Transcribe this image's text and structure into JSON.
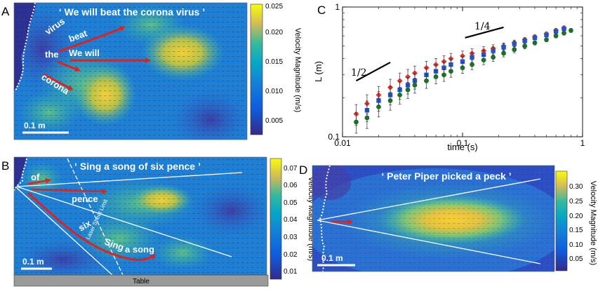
{
  "panels": {
    "A": {
      "label": "A",
      "quote": "‘ We will beat the corona virus ’",
      "words": [
        "virus",
        "beat",
        "the",
        "We will",
        "corona"
      ],
      "scale_bar": "0.1 m",
      "colorbar": {
        "title": "Velocity Magnitude (m/s)",
        "ticks": [
          "0.025",
          "0.020",
          "0.015",
          "0.010",
          "0.005"
        ]
      }
    },
    "B": {
      "label": "B",
      "quote": "‘ Sing a song of six pence ’",
      "words": [
        "of",
        "pence",
        "six",
        "Sing",
        "a song"
      ],
      "limit_label": "Laser Sheet Limit",
      "table_label": "Table",
      "scale_bar": "0.1 m",
      "colorbar": {
        "title": "Velocity Magnitude (m/s)",
        "ticks": [
          "0.07",
          "0.06",
          "0.05",
          "0.04",
          "0.03",
          "0.02",
          "0.01"
        ]
      }
    },
    "D": {
      "label": "D",
      "quote": "‘ Peter Piper picked a peck ’",
      "scale_bar": "0.1 m",
      "colorbar": {
        "title": "Velocity Magnitude (m/s)",
        "ticks": [
          "0.30",
          "0.25",
          "0.20",
          "0.15",
          "0.10",
          "0.05"
        ]
      }
    }
  },
  "chart_data": {
    "type": "scatter",
    "panel_label": "C",
    "xlabel": "time (s)",
    "ylabel": "L (m)",
    "xscale": "log",
    "yscale": "log",
    "xlim": [
      0.01,
      1
    ],
    "ylim": [
      0.1,
      1
    ],
    "xticks": [
      "0.01",
      "0.1",
      "1"
    ],
    "yticks": [
      "0.1",
      "1"
    ],
    "slope_labels": [
      "1/2",
      "1/4"
    ],
    "colors": {
      "red": "#e0322a",
      "blue": "#2452c8",
      "green": "#1e6e2a"
    },
    "series": [
      {
        "color": "red",
        "marker": "diamond",
        "x": [
          0.013,
          0.016,
          0.02,
          0.025,
          0.03,
          0.035,
          0.04,
          0.05,
          0.06,
          0.07,
          0.08,
          0.1,
          0.12,
          0.15,
          0.18,
          0.22,
          0.27,
          0.33,
          0.4,
          0.5,
          0.6,
          0.7
        ],
        "y": [
          0.15,
          0.18,
          0.21,
          0.24,
          0.27,
          0.29,
          0.31,
          0.34,
          0.36,
          0.38,
          0.4,
          0.42,
          0.44,
          0.46,
          0.48,
          0.5,
          0.53,
          0.56,
          0.59,
          0.62,
          0.66,
          0.69
        ]
      },
      {
        "color": "blue",
        "marker": "square",
        "x": [
          0.016,
          0.02,
          0.025,
          0.03,
          0.035,
          0.04,
          0.05,
          0.06,
          0.07,
          0.08,
          0.1,
          0.12,
          0.15,
          0.18,
          0.22,
          0.27,
          0.33,
          0.4,
          0.5,
          0.6,
          0.7
        ],
        "y": [
          0.16,
          0.19,
          0.21,
          0.23,
          0.25,
          0.27,
          0.3,
          0.32,
          0.34,
          0.36,
          0.38,
          0.41,
          0.43,
          0.46,
          0.49,
          0.52,
          0.55,
          0.58,
          0.61,
          0.65,
          0.68
        ]
      },
      {
        "color": "green",
        "marker": "circle",
        "x": [
          0.013,
          0.016,
          0.02,
          0.025,
          0.03,
          0.035,
          0.04,
          0.05,
          0.06,
          0.07,
          0.08,
          0.1,
          0.12,
          0.15,
          0.18,
          0.22,
          0.27,
          0.33,
          0.4,
          0.5,
          0.6,
          0.7,
          0.8
        ],
        "y": [
          0.13,
          0.14,
          0.17,
          0.19,
          0.21,
          0.23,
          0.25,
          0.27,
          0.29,
          0.3,
          0.32,
          0.34,
          0.36,
          0.39,
          0.41,
          0.44,
          0.47,
          0.5,
          0.53,
          0.56,
          0.6,
          0.63,
          0.66
        ]
      }
    ]
  }
}
